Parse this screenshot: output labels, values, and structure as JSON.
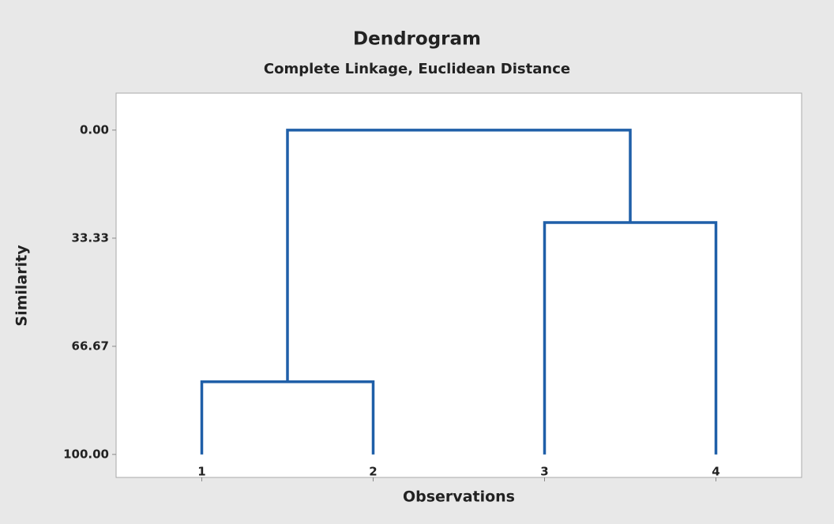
{
  "chart_data": {
    "type": "dendrogram",
    "title": "Dendrogram",
    "subtitle": "Complete Linkage, Euclidean Distance",
    "xlabel": "Observations",
    "ylabel": "Similarity",
    "categories": [
      "1",
      "2",
      "3",
      "4"
    ],
    "ylim": [
      -11.4,
      107.1
    ],
    "inverted": true,
    "yticks": [
      {
        "value": 0,
        "label": "0.00"
      },
      {
        "value": 33.33,
        "label": "33.33"
      },
      {
        "value": 66.67,
        "label": "66.67"
      },
      {
        "value": 100,
        "label": "100.00"
      }
    ],
    "leaf_similarity": 100,
    "color": "#1f5fa8",
    "tree": {
      "similarity": 0,
      "children": [
        {
          "similarity": 77.6,
          "children": [
            0,
            1
          ]
        },
        {
          "similarity": 28.5,
          "children": [
            2,
            3
          ]
        }
      ]
    }
  }
}
